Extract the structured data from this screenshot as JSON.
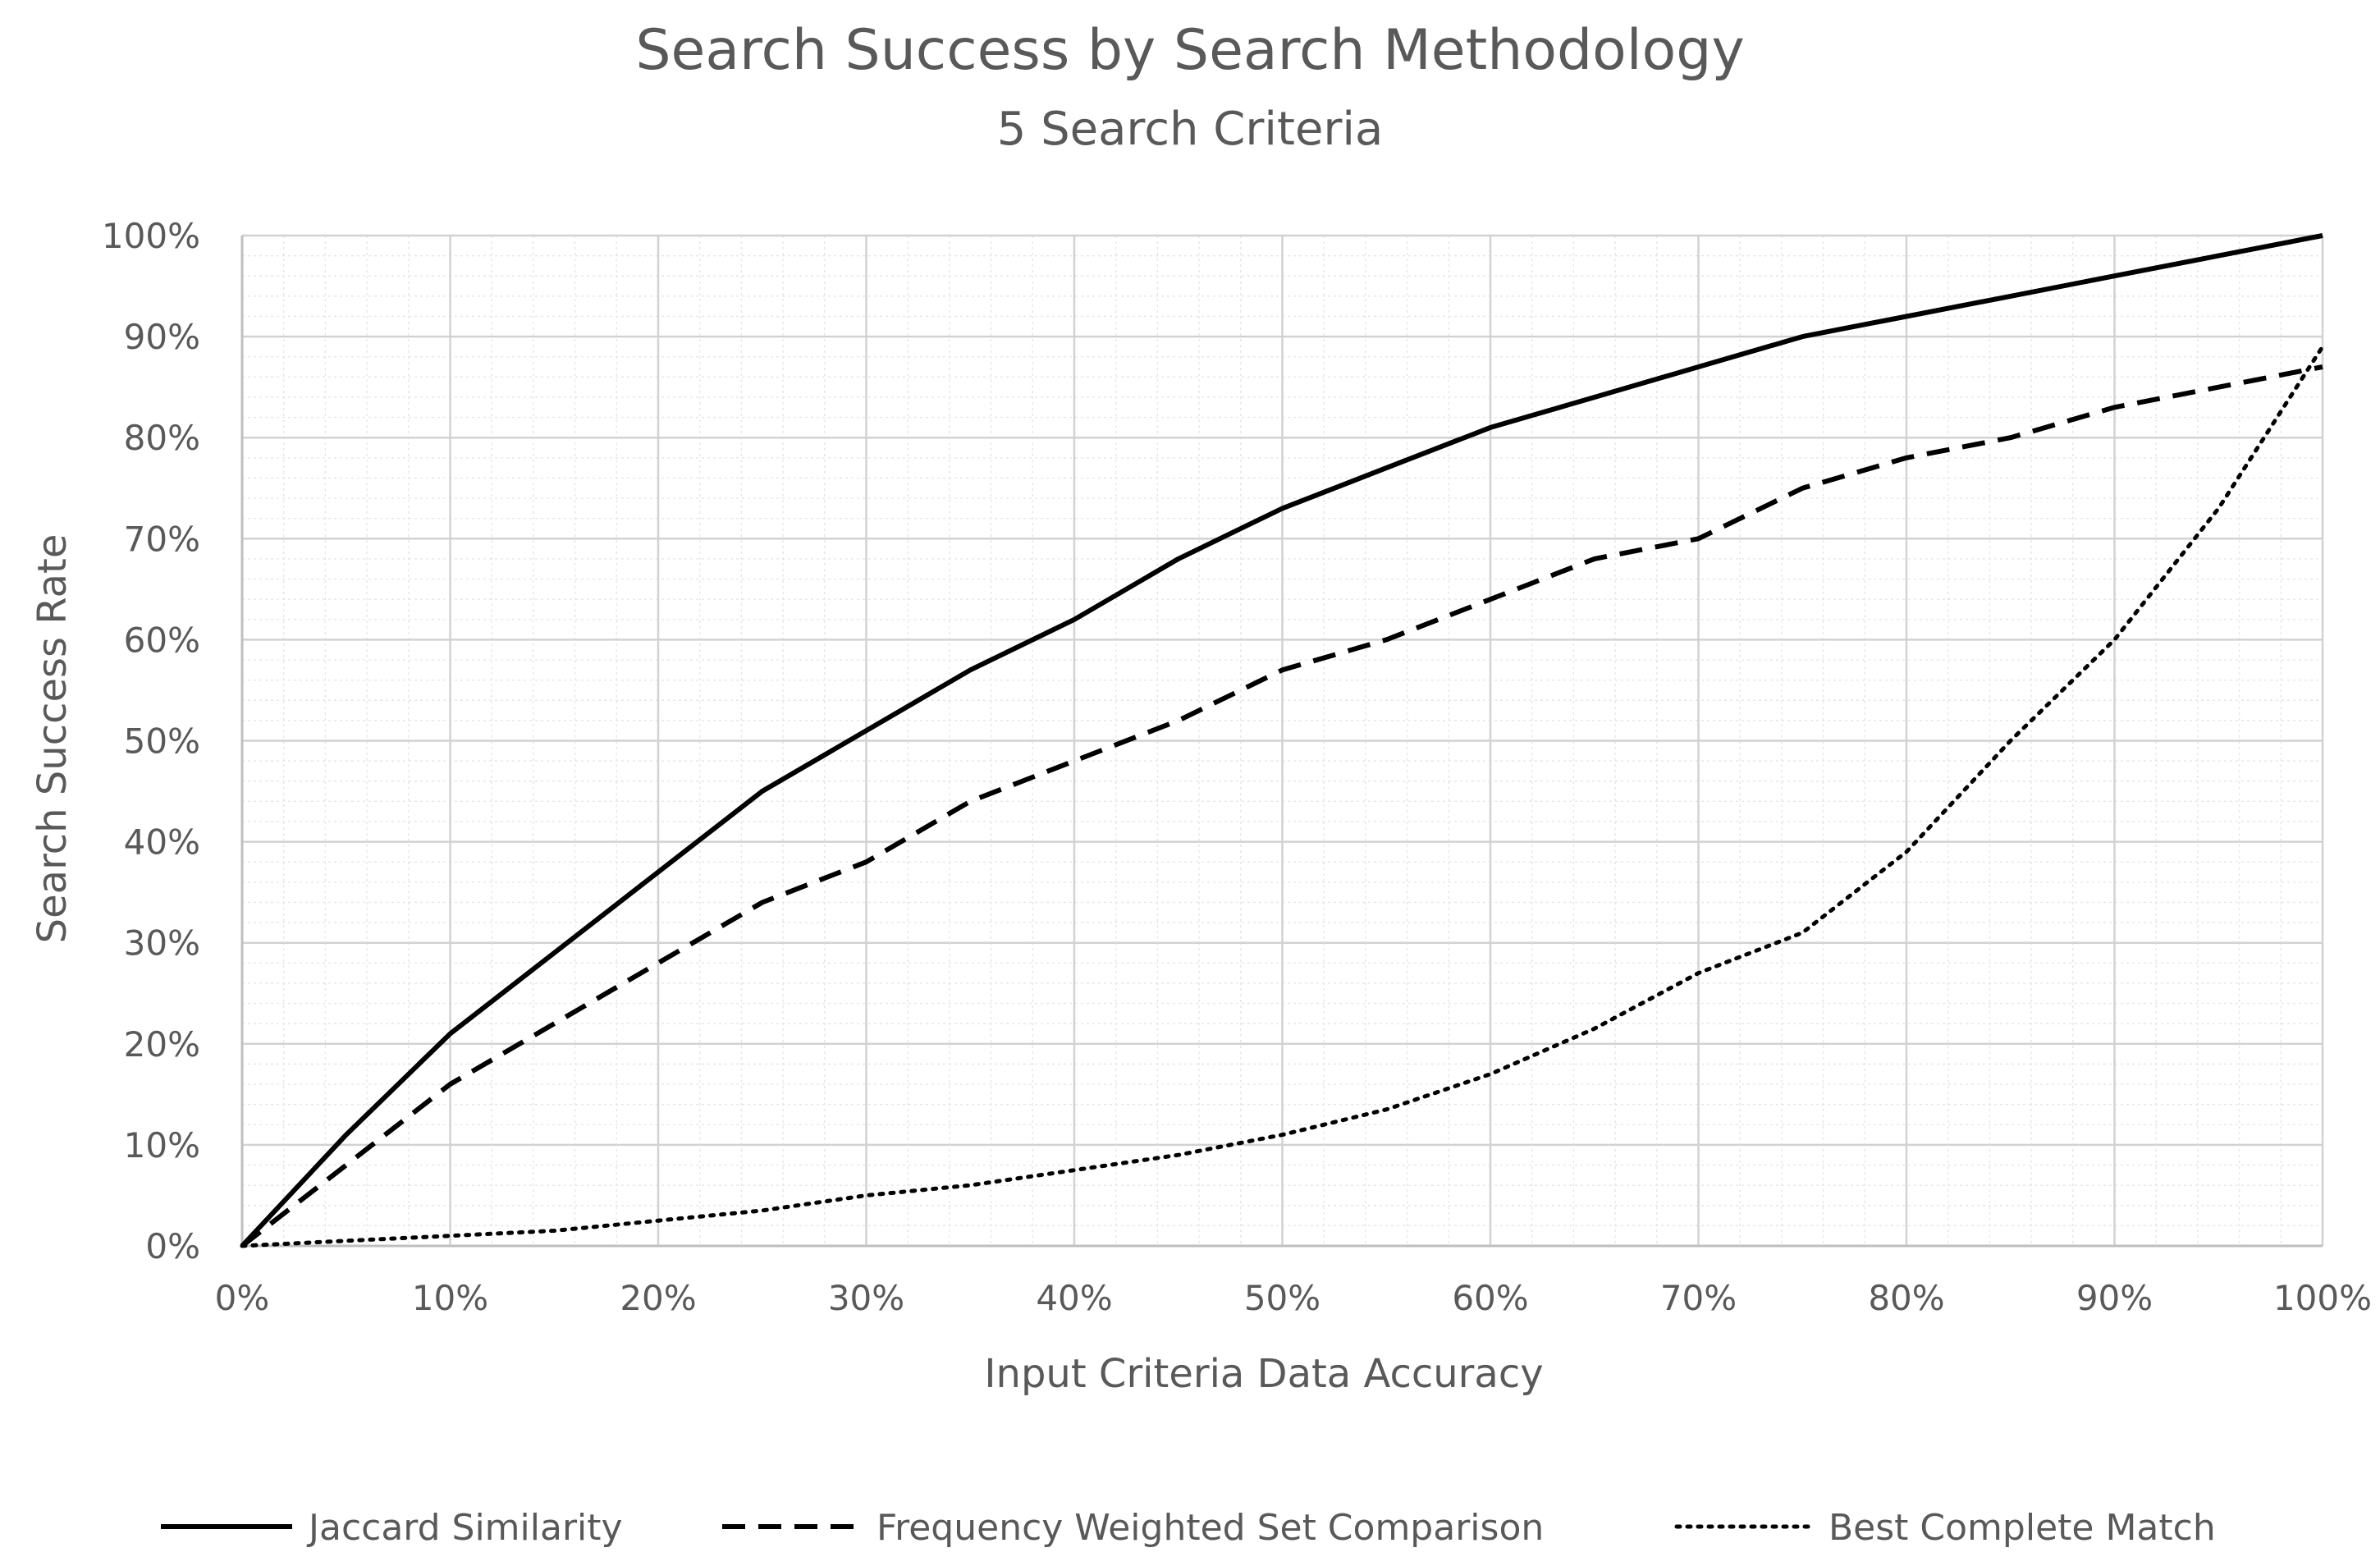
{
  "chart_data": {
    "type": "line",
    "title": "Search Success by Search Methodology",
    "subtitle": "5 Search Criteria",
    "xlabel": "Input Criteria Data Accuracy",
    "ylabel": "Search Success Rate",
    "xlim": [
      0,
      100
    ],
    "ylim": [
      0,
      100
    ],
    "x_ticks": [
      "0%",
      "10%",
      "20%",
      "30%",
      "40%",
      "50%",
      "60%",
      "70%",
      "80%",
      "90%",
      "100%"
    ],
    "y_ticks": [
      "0%",
      "10%",
      "20%",
      "30%",
      "40%",
      "50%",
      "60%",
      "70%",
      "80%",
      "90%",
      "100%"
    ],
    "grid": true,
    "legend_position": "bottom",
    "x": [
      0,
      5,
      10,
      15,
      20,
      25,
      30,
      35,
      40,
      45,
      50,
      55,
      60,
      65,
      70,
      75,
      80,
      85,
      90,
      95,
      100
    ],
    "series": [
      {
        "name": "Jaccard Similarity",
        "line_style": "solid",
        "color": "#000000",
        "values": [
          0,
          11,
          21,
          29,
          37,
          45,
          51,
          57,
          62,
          68,
          73,
          77,
          81,
          84,
          87,
          90,
          92,
          94,
          96,
          98,
          100
        ]
      },
      {
        "name": "Frequency Weighted Set Comparison",
        "line_style": "dashed",
        "color": "#000000",
        "values": [
          0,
          8,
          16,
          22,
          28,
          34,
          38,
          44,
          48,
          52,
          57,
          60,
          64,
          68,
          70,
          75,
          78,
          80,
          83,
          85,
          87
        ]
      },
      {
        "name": "Best Complete Match",
        "line_style": "dotted",
        "color": "#000000",
        "values": [
          0,
          0.5,
          1,
          1.5,
          2.5,
          3.5,
          5,
          6,
          7.5,
          9,
          11,
          13.5,
          17,
          21.5,
          27,
          31,
          39,
          50,
          60,
          73,
          89
        ]
      }
    ]
  }
}
